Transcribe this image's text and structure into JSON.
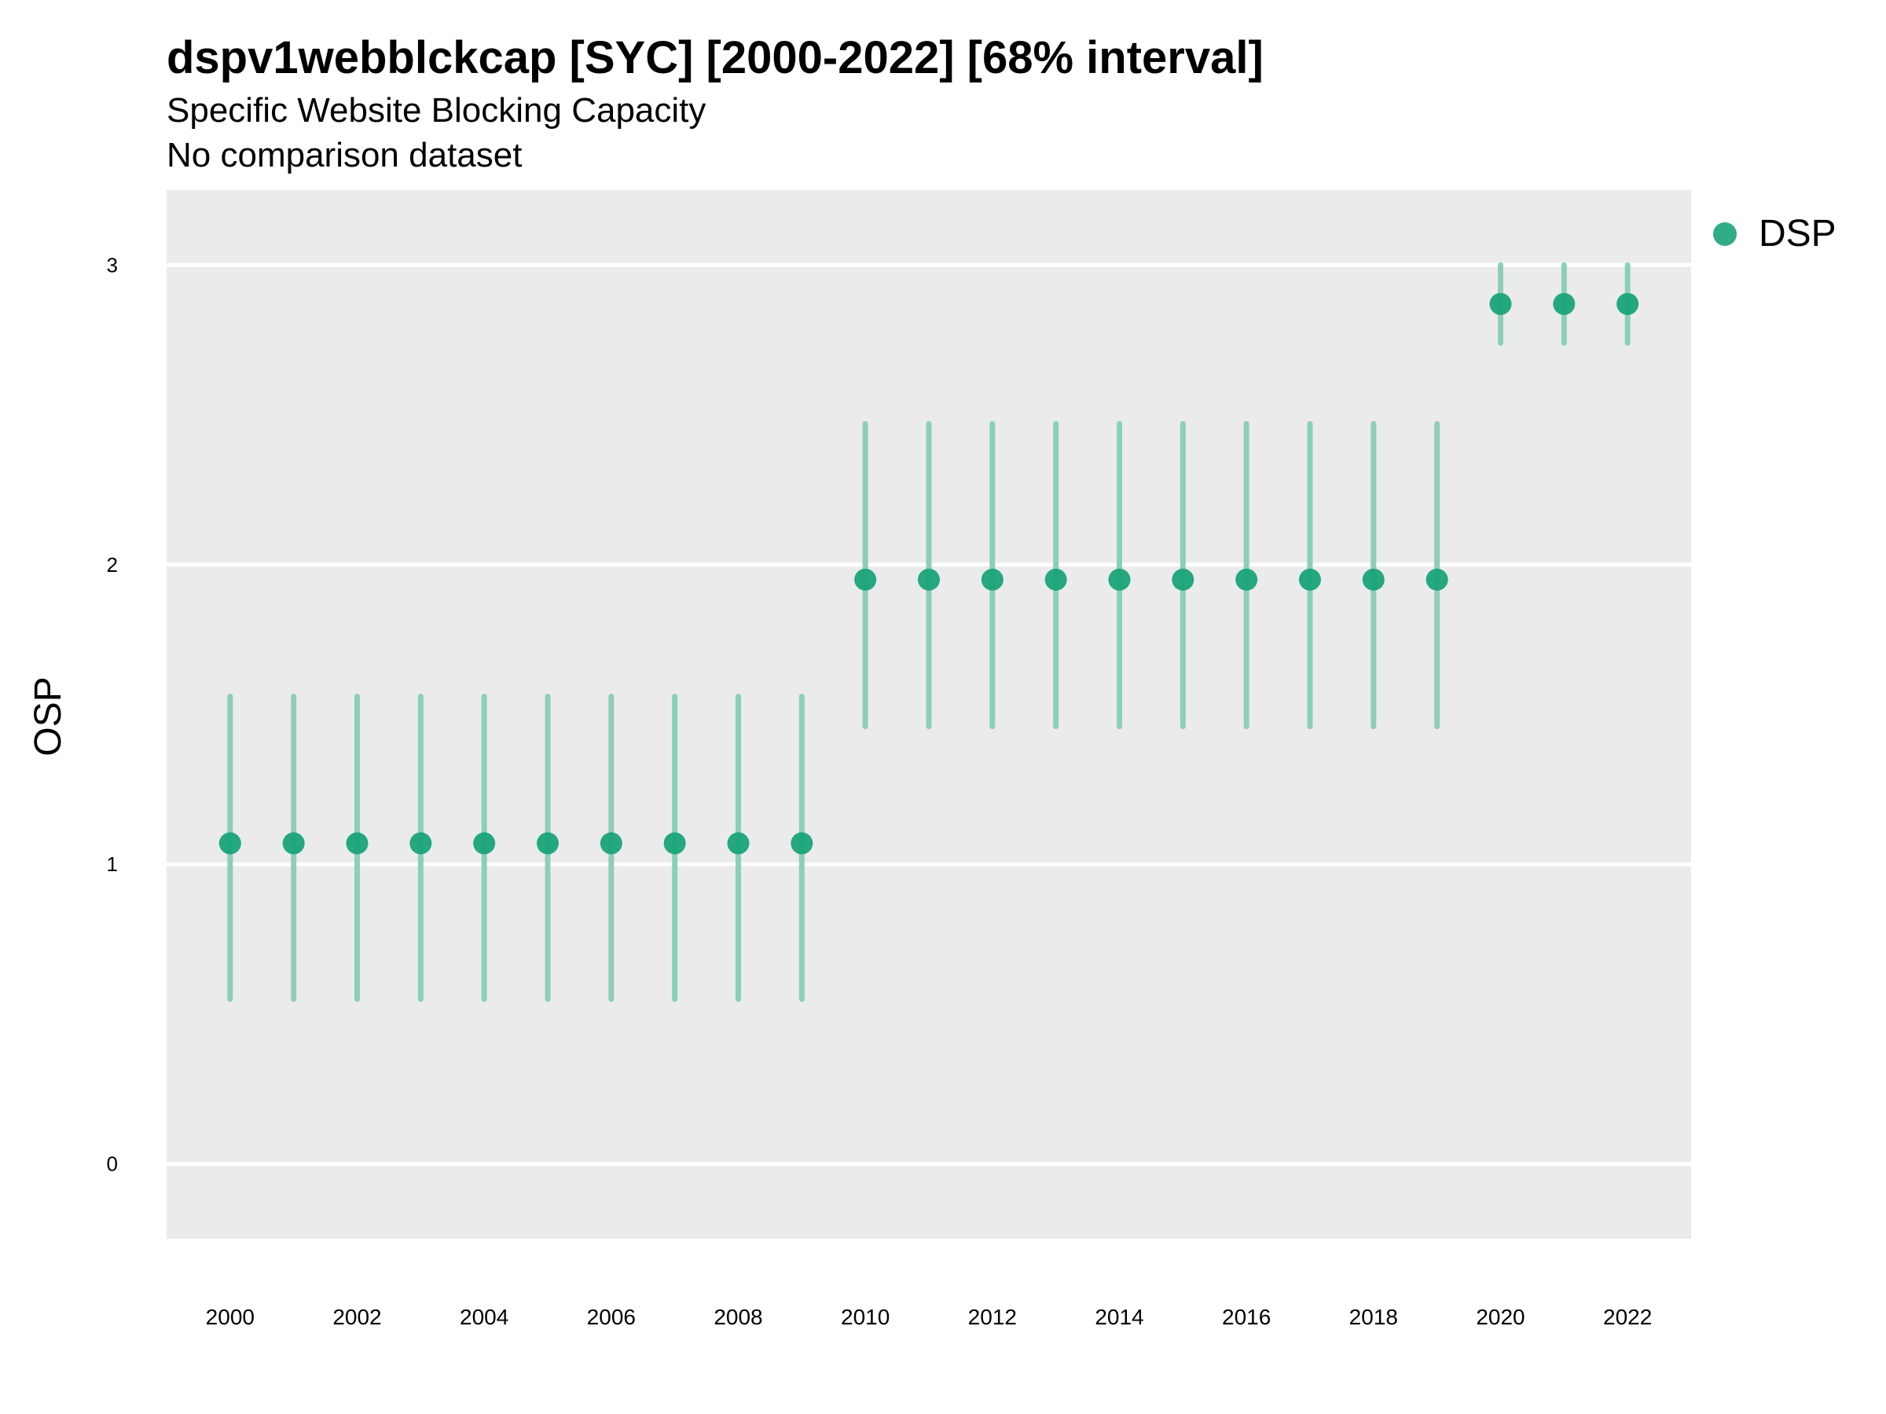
{
  "chart_data": {
    "type": "scatter",
    "title": "dspv1webblckcap [SYC] [2000-2022] [68% interval]",
    "subtitle": "Specific Website Blocking Capacity",
    "subtitle2": "No comparison dataset",
    "xlabel": "",
    "ylabel": "OSP",
    "xlim": [
      1999,
      2023
    ],
    "ylim": [
      -0.25,
      3.25
    ],
    "x_ticks": [
      2000,
      2002,
      2004,
      2006,
      2008,
      2010,
      2012,
      2014,
      2016,
      2018,
      2020,
      2022
    ],
    "y_ticks": [
      0,
      1,
      2,
      3
    ],
    "grid": true,
    "legend_position": "right",
    "colors": {
      "point": "#1aa37a",
      "interval": "#8ccfb8",
      "panel": "#ebebeb",
      "grid": "#ffffff"
    },
    "series": [
      {
        "name": "DSP",
        "x": [
          2000,
          2001,
          2002,
          2003,
          2004,
          2005,
          2006,
          2007,
          2008,
          2009,
          2010,
          2011,
          2012,
          2013,
          2014,
          2015,
          2016,
          2017,
          2018,
          2019,
          2020,
          2021,
          2022
        ],
        "y": [
          1.07,
          1.07,
          1.07,
          1.07,
          1.07,
          1.07,
          1.07,
          1.07,
          1.07,
          1.07,
          1.95,
          1.95,
          1.95,
          1.95,
          1.95,
          1.95,
          1.95,
          1.95,
          1.95,
          1.95,
          2.87,
          2.87,
          2.87
        ],
        "lower": [
          0.55,
          0.55,
          0.55,
          0.55,
          0.55,
          0.55,
          0.55,
          0.55,
          0.55,
          0.55,
          1.46,
          1.46,
          1.46,
          1.46,
          1.46,
          1.46,
          1.46,
          1.46,
          1.46,
          1.46,
          2.74,
          2.74,
          2.74
        ],
        "upper": [
          1.56,
          1.56,
          1.56,
          1.56,
          1.56,
          1.56,
          1.56,
          1.56,
          1.56,
          1.56,
          2.47,
          2.47,
          2.47,
          2.47,
          2.47,
          2.47,
          2.47,
          2.47,
          2.47,
          2.47,
          3.0,
          3.0,
          3.0
        ]
      }
    ]
  }
}
